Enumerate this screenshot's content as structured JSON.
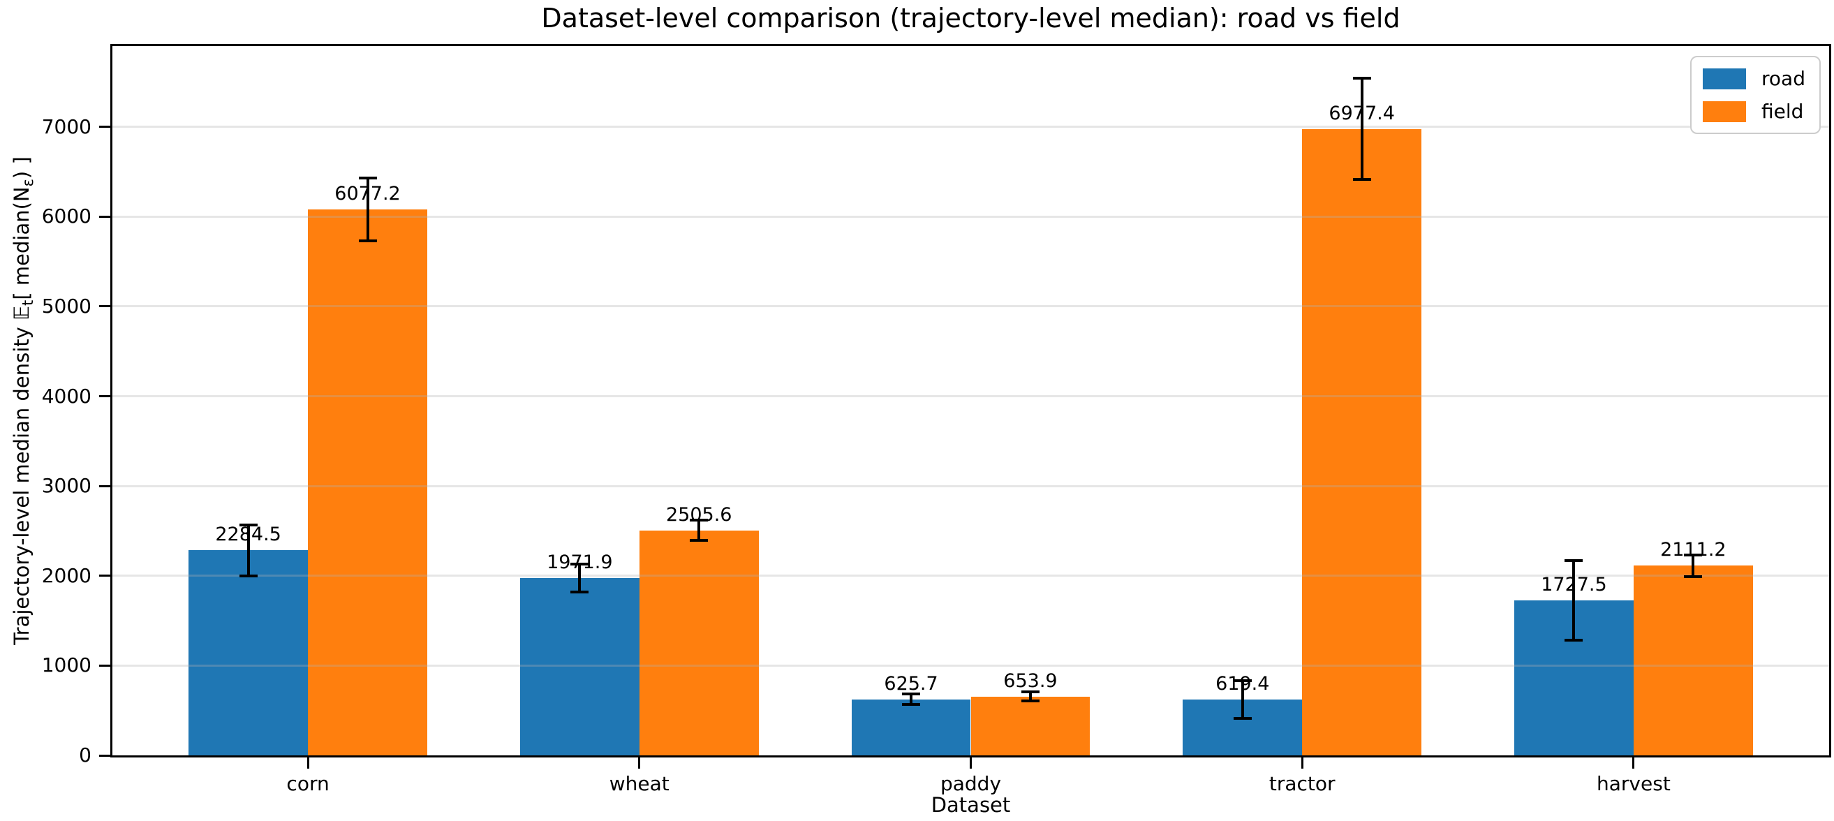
{
  "chart_data": {
    "type": "bar",
    "title": "Dataset-level comparison (trajectory-level median): road vs field",
    "xlabel": "Dataset",
    "ylabel_parts": {
      "prefix": "Trajectory-level median density ",
      "expectation_symbol": "𝔼",
      "expectation_sub": "t",
      "bracket_open": "[ median(N",
      "n_sub": "ε",
      "bracket_close": ") ]"
    },
    "categories": [
      "corn",
      "wheat",
      "paddy",
      "tractor",
      "harvest"
    ],
    "series": [
      {
        "name": "road",
        "color": "#1f77b4",
        "values": [
          2284.5,
          1971.9,
          625.7,
          619.4,
          1727.5
        ],
        "errors": [
          285,
          155,
          60,
          210,
          445
        ]
      },
      {
        "name": "field",
        "color": "#ff7f0e",
        "values": [
          6077.2,
          2505.6,
          653.9,
          6977.4,
          2111.2
        ],
        "errors": [
          350,
          112,
          50,
          565,
          124
        ]
      }
    ],
    "y_ticks": [
      0,
      1000,
      2000,
      3000,
      4000,
      5000,
      6000,
      7000
    ],
    "ylim": [
      0,
      7900
    ],
    "grid": "horizontal-y",
    "legend_position": "upper right",
    "bar_labels_decimals": 1
  }
}
